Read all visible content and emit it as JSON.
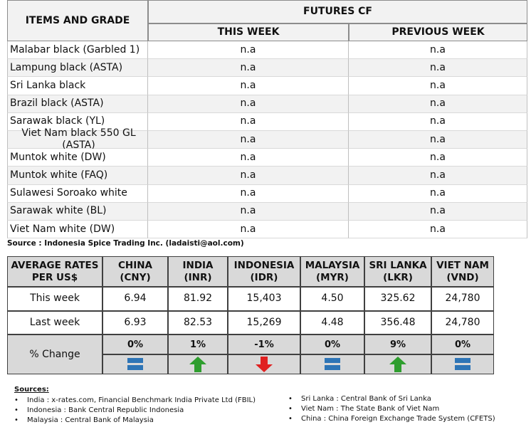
{
  "futures_table": {
    "header": {
      "items": "ITEMS AND GRADE",
      "group": "FUTURES CF",
      "this_week": "THIS WEEK",
      "previous_week": "PREVIOUS WEEK"
    },
    "rows": [
      [
        "Malabar black (Garbled 1)",
        "n.a",
        "n.a"
      ],
      [
        "Lampung black (ASTA)",
        "n.a",
        "n.a"
      ],
      [
        "Sri Lanka black",
        "n.a",
        "n.a"
      ],
      [
        "Brazil black (ASTA)",
        "n.a",
        "n.a"
      ],
      [
        "Sarawak black (YL)",
        "n.a",
        "n.a"
      ],
      [
        "Viet Nam black 550 GL (ASTA)",
        "n.a",
        "n.a"
      ],
      [
        "Muntok white (DW)",
        "n.a",
        "n.a"
      ],
      [
        "Muntok white (FAQ)",
        "n.a",
        "n.a"
      ],
      [
        "Sulawesi Soroako white",
        "n.a",
        "n.a"
      ],
      [
        "Sarawak  white (BL)",
        "n.a",
        "n.a"
      ],
      [
        "Viet Nam white (DW)",
        "n.a",
        "n.a"
      ]
    ]
  },
  "source": "Source : Indonesia Spice Trading Inc. (ladaisti@aol.com)",
  "rates_table": {
    "header": [
      [
        "AVERAGE RATES",
        "PER US$"
      ],
      [
        "CHINA",
        "(CNY)"
      ],
      [
        "INDIA",
        "(INR)"
      ],
      [
        "INDONESIA",
        "(IDR)"
      ],
      [
        "MALAYSIA",
        "(MYR)"
      ],
      [
        "SRI LANKA",
        "(LKR)"
      ],
      [
        "VIET NAM",
        "(VND)"
      ]
    ],
    "rows": [
      [
        "This week",
        "6.94",
        "81.92",
        "15,403",
        "4.50",
        "325.62",
        "24,780"
      ],
      [
        "Last week",
        "6.93",
        "82.53",
        "15,269",
        "4.48",
        "356.48",
        "24,780"
      ]
    ],
    "change": {
      "label": "% Change",
      "values": [
        "0%",
        "1%",
        "-1%",
        "0%",
        "9%",
        "0%"
      ]
    }
  },
  "sources": {
    "title": "Sources:",
    "left": [
      "India : x-rates.com, Financial Benchmark India Private Ltd (FBIL)",
      "Indonesia : Bank Central Republic Indonesia",
      "Malaysia : Central Bank of Malaysia"
    ],
    "right": [
      "Sri Lanka : Central Bank of Sri Lanka",
      "Viet Nam : The State Bank of Viet Nam",
      "China : China Foreign Exchange Trade System (CFETS)"
    ]
  }
}
